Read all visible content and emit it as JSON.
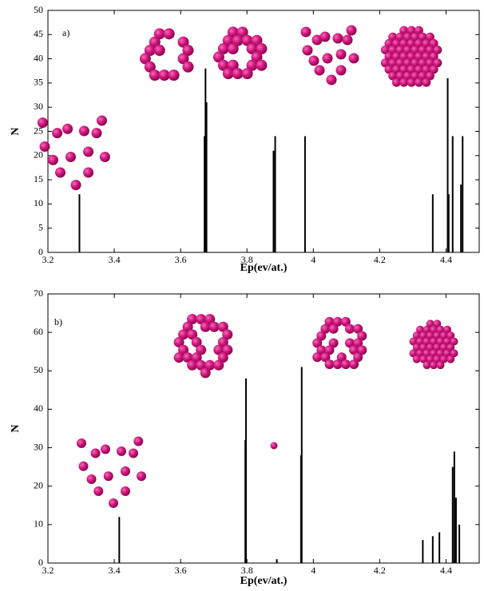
{
  "chart_data": [
    {
      "type": "stem",
      "panel_label": "a)",
      "x_label": "Ep(ev/at.)",
      "y_label": "N",
      "color": "#000000",
      "x": [
        3.295,
        3.672,
        3.675,
        3.678,
        3.88,
        3.885,
        3.975,
        4.36,
        4.405,
        4.408,
        4.42,
        4.445,
        4.45
      ],
      "values": [
        12,
        24,
        38,
        31,
        21,
        24,
        24,
        12,
        36,
        12,
        24,
        14,
        24
      ],
      "xlim": [
        3.2,
        4.5
      ],
      "xticks": [
        3.2,
        3.4,
        3.6,
        3.8,
        4,
        4.2,
        4.4
      ],
      "ylim": [
        0,
        50
      ],
      "yticks": [
        0,
        5,
        10,
        15,
        20,
        25,
        30,
        35,
        40,
        45,
        50
      ]
    },
    {
      "type": "stem",
      "panel_label": "b)",
      "x_label": "Ep(ev/at.)",
      "y_label": "N",
      "color": "#000000",
      "x": [
        3.415,
        3.795,
        3.797,
        3.89,
        3.963,
        3.965,
        4.33,
        4.36,
        4.38,
        4.42,
        4.425,
        4.43,
        4.44
      ],
      "values": [
        12,
        32,
        48,
        1,
        28,
        51,
        6,
        7,
        8,
        25,
        29,
        17,
        10
      ],
      "xlim": [
        3.2,
        4.5
      ],
      "xticks": [
        3.2,
        3.4,
        3.6,
        3.8,
        4,
        4.2,
        4.4
      ],
      "ylim": [
        0,
        70
      ],
      "yticks": [
        0,
        10,
        20,
        30,
        40,
        50,
        60,
        70
      ]
    }
  ]
}
